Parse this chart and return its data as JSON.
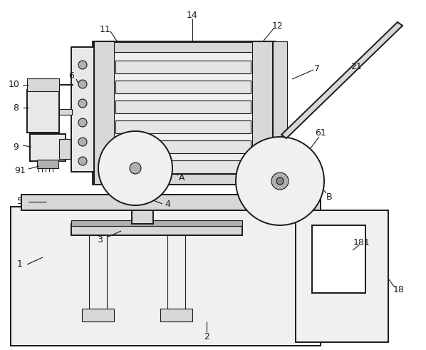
{
  "bg_color": "#ffffff",
  "lc": "#1a1a1a",
  "lw": 1.4,
  "lw_thin": 0.8,
  "lw_thick": 2.0,
  "gray_light": "#f0f0f0",
  "gray_mid": "#d8d8d8",
  "gray_dark": "#b0b0b0",
  "gray_fill": "#e8e8e8"
}
